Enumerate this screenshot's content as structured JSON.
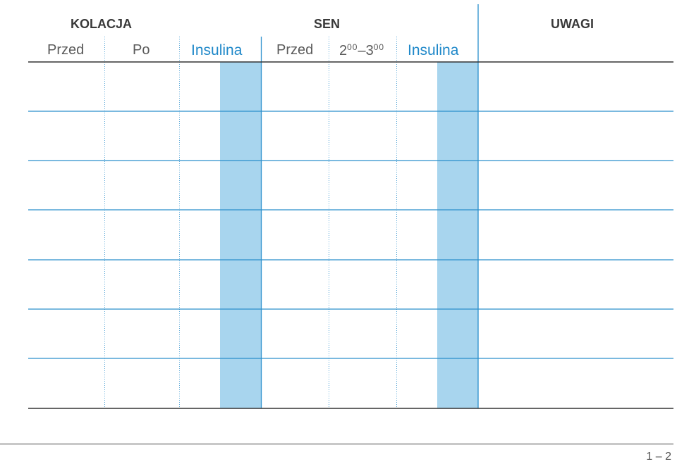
{
  "sections": {
    "dinner": "KOLACJA",
    "sleep": "SEN",
    "notes": "UWAGI"
  },
  "columns": {
    "dinner_before": "Przed",
    "dinner_after": "Po",
    "dinner_insulin": "Insulina",
    "sleep_before": "Przed",
    "night_time_a": "2",
    "night_time_a_sup": "00",
    "night_time_dash": "–",
    "night_time_b": "3",
    "night_time_b_sup": "00",
    "sleep_insulin": "Insulina"
  },
  "colors": {
    "insulin_fill": "#a8d5ee",
    "insulin_text": "#1f88c9",
    "rule_blue": "#2a8fcc",
    "rule_dark": "#333333"
  },
  "page_number": "1 – 2",
  "row_count": 7
}
